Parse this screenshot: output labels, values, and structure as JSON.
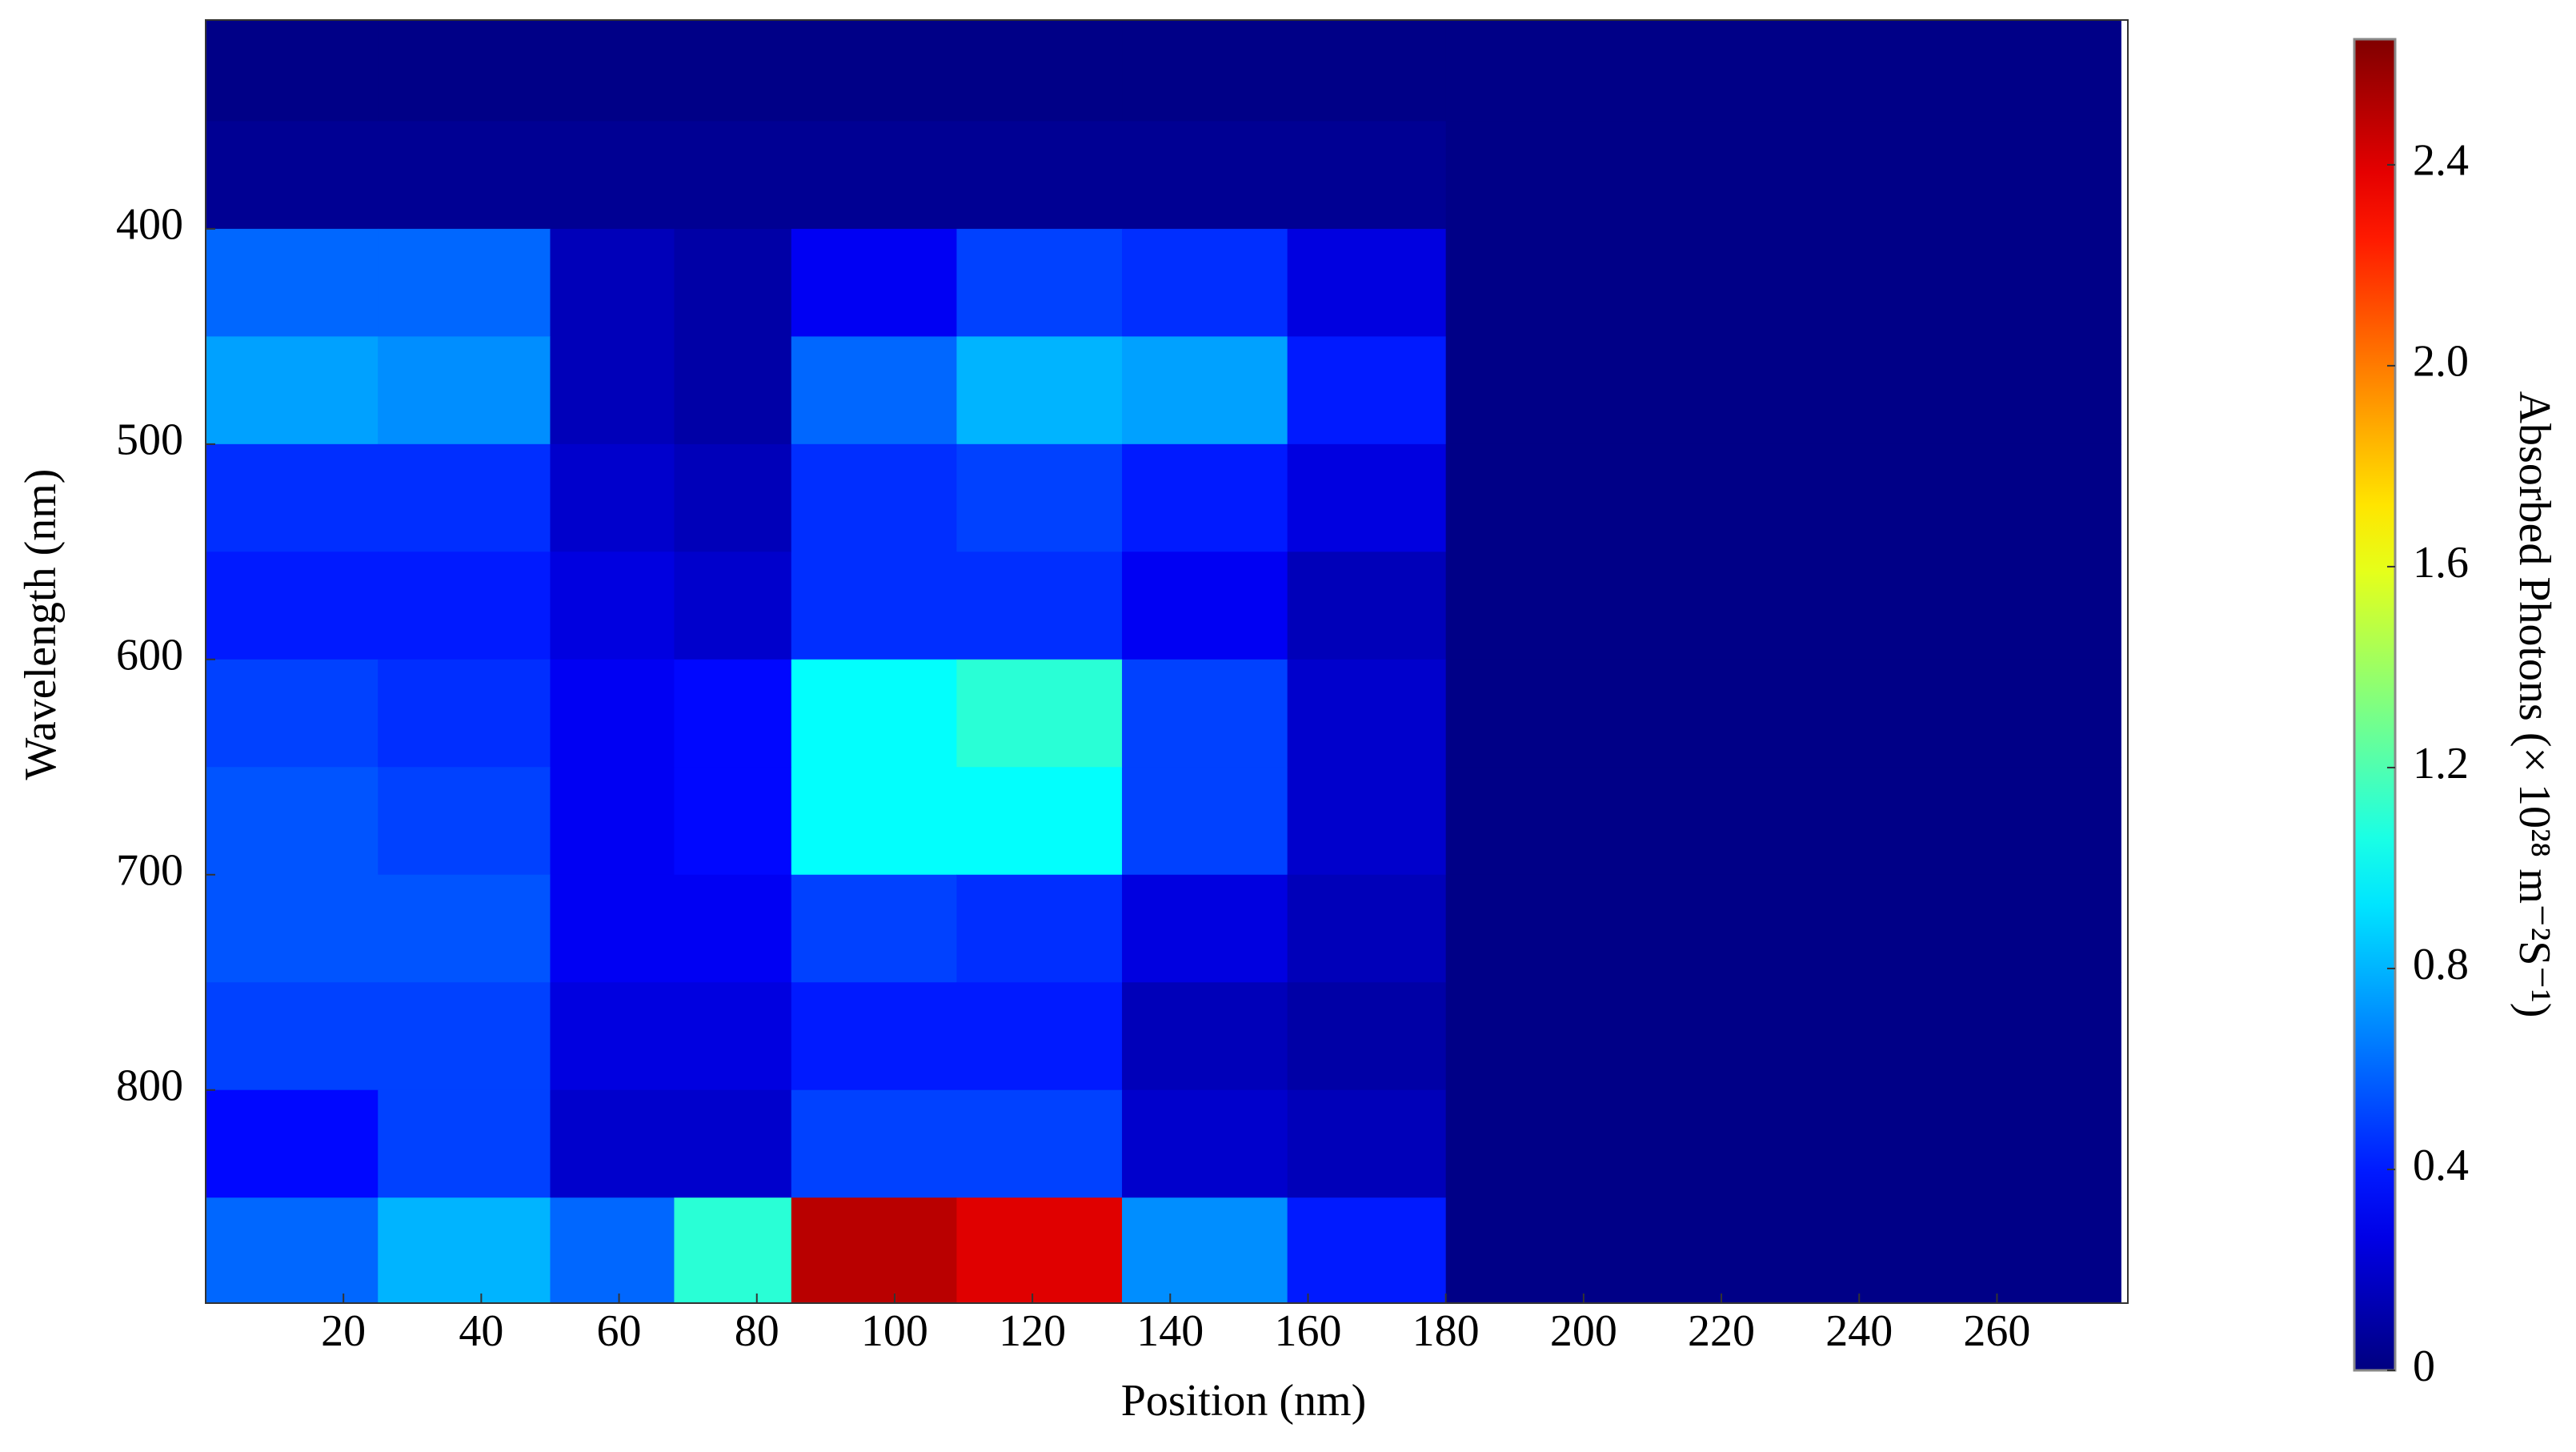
{
  "chart_data": {
    "type": "heatmap",
    "xlabel": "Position (nm)",
    "ylabel": "Wavelength (nm)",
    "colorbar_label": "Absorbed Photons (× 10²⁸ m⁻²S⁻¹)",
    "colormap": "jet",
    "x_edges": [
      0,
      25,
      50,
      68,
      85,
      109,
      133,
      157,
      180,
      278
    ],
    "y_edges": [
      303,
      350,
      400,
      450,
      500,
      550,
      600,
      650,
      700,
      750,
      800,
      850,
      899
    ],
    "values": [
      [
        0.02,
        0.02,
        0.02,
        0.02,
        0.02,
        0.02,
        0.02,
        0.02,
        0.02
      ],
      [
        0.05,
        0.05,
        0.05,
        0.05,
        0.05,
        0.05,
        0.05,
        0.05,
        0.02
      ],
      [
        0.6,
        0.6,
        0.15,
        0.1,
        0.3,
        0.5,
        0.45,
        0.25,
        0.02
      ],
      [
        0.75,
        0.7,
        0.15,
        0.1,
        0.6,
        0.8,
        0.75,
        0.4,
        0.02
      ],
      [
        0.45,
        0.45,
        0.2,
        0.15,
        0.45,
        0.5,
        0.4,
        0.25,
        0.02
      ],
      [
        0.4,
        0.4,
        0.25,
        0.2,
        0.45,
        0.45,
        0.3,
        0.15,
        0.02
      ],
      [
        0.5,
        0.45,
        0.3,
        0.35,
        1.0,
        1.1,
        0.5,
        0.2,
        0.02
      ],
      [
        0.55,
        0.5,
        0.3,
        0.35,
        1.0,
        1.0,
        0.5,
        0.2,
        0.02
      ],
      [
        0.55,
        0.55,
        0.3,
        0.3,
        0.5,
        0.45,
        0.25,
        0.15,
        0.02
      ],
      [
        0.5,
        0.5,
        0.25,
        0.25,
        0.4,
        0.4,
        0.15,
        0.1,
        0.02
      ],
      [
        0.35,
        0.5,
        0.2,
        0.2,
        0.5,
        0.5,
        0.2,
        0.15,
        0.02
      ],
      [
        0.6,
        0.8,
        0.6,
        1.1,
        2.5,
        2.4,
        0.7,
        0.4,
        0.02
      ]
    ],
    "xlim": [
      0,
      279
    ],
    "ylim": [
      303,
      899
    ],
    "y_inverted": true,
    "xticks": [
      20,
      40,
      60,
      80,
      100,
      120,
      140,
      160,
      180,
      200,
      220,
      240,
      260
    ],
    "yticks": [
      400,
      500,
      600,
      700,
      800
    ],
    "clim": [
      0,
      2.65
    ],
    "cticks": [
      0,
      {
        "value": 0.4,
        "label": "0.4"
      },
      {
        "value": 0.8,
        "label": "0.8"
      },
      {
        "value": 1.2,
        "label": "1.2"
      },
      {
        "value": 1.6,
        "label": "1.6"
      },
      {
        "value": 2.0,
        "label": "2.0"
      },
      {
        "value": 2.4,
        "label": "2.4"
      }
    ]
  }
}
